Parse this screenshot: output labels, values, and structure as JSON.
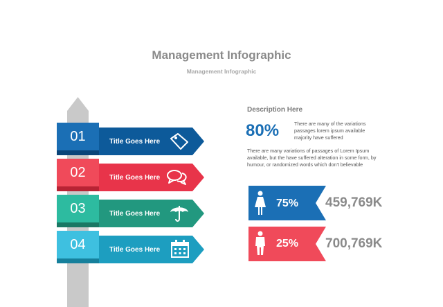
{
  "header": {
    "title": "Management Infographic",
    "subtitle": "Management Infographic"
  },
  "steps": [
    {
      "number": "01",
      "label": "Title Goes Here",
      "icon": "tag-icon",
      "box_color": "#1b6fb5",
      "arrow_color": "#0d5a9a"
    },
    {
      "number": "02",
      "label": "Title Goes Here",
      "icon": "speech-bubbles-icon",
      "box_color": "#f04a5a",
      "arrow_color": "#e8344a"
    },
    {
      "number": "03",
      "label": "Title Goes Here",
      "icon": "umbrella-icon",
      "box_color": "#2dbba0",
      "arrow_color": "#22987f"
    },
    {
      "number": "04",
      "label": "Title Goes Here",
      "icon": "calendar-icon",
      "box_color": "#3ec0e0",
      "arrow_color": "#1d9ec0"
    }
  ],
  "description": {
    "title": "Description Here",
    "percent": "80%",
    "percent_text": "There are many of the variations passages lorem ipsum available majority have suffered",
    "paragraph": "There are many variations of passages  of Lorem Ipsum available, but the have suffered alteration in some  form, by humour, or randomized words  which  don't believable"
  },
  "stats": [
    {
      "icon": "female-icon",
      "percent": "75%",
      "value": "459,769K",
      "color": "#1b6fb5"
    },
    {
      "icon": "male-icon",
      "percent": "25%",
      "value": "700,769K",
      "color": "#f04a5a"
    }
  ]
}
